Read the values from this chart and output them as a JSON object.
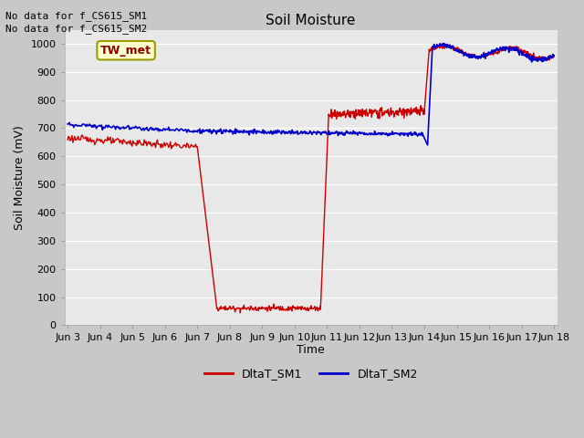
{
  "title": "Soil Moisture",
  "ylabel": "Soil Moisture (mV)",
  "xlabel": "Time",
  "fig_bg_color": "#c8c8c8",
  "plot_bg_color": "#e8e8e8",
  "ylim": [
    0,
    1050
  ],
  "yticks": [
    0,
    100,
    200,
    300,
    400,
    500,
    600,
    700,
    800,
    900,
    1000
  ],
  "annotations": [
    "No data for f_CS615_SM1",
    "No data for f_CS615_SM2"
  ],
  "legend_label1": "DltaT_SM1",
  "legend_label2": "DltaT_SM2",
  "box_label": "TW_met",
  "sm1_color": "#cc0000",
  "sm2_color": "#0000cc",
  "xtick_labels": [
    "Jun 3",
    "Jun 4",
    "Jun 5",
    "Jun 6",
    "Jun 7",
    "Jun 8",
    "Jun 9",
    "Jun 10",
    "Jun 11",
    "Jun 12",
    "Jun 13",
    "Jun 14",
    "Jun 15",
    "Jun 16",
    "Jun 17",
    "Jun 18"
  ],
  "title_fontsize": 11,
  "axis_label_fontsize": 9,
  "tick_fontsize": 8,
  "annotation_fontsize": 8
}
